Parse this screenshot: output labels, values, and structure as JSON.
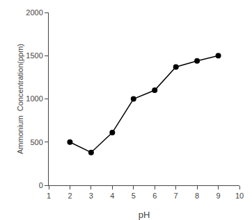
{
  "chart_data": {
    "type": "line",
    "x": [
      2,
      3,
      4,
      5,
      6,
      7,
      8,
      9
    ],
    "values": [
      500,
      380,
      610,
      1000,
      1100,
      1370,
      1440,
      1500
    ],
    "xlabel": "pH",
    "ylabel": "Ammonium  Concentration(ppm)",
    "xlim": [
      1,
      10
    ],
    "ylim": [
      0,
      2000
    ],
    "xticks": [
      1,
      2,
      3,
      4,
      5,
      6,
      7,
      8,
      9,
      10
    ],
    "yticks": [
      0,
      500,
      1000,
      1500,
      2000
    ],
    "color": "#000000",
    "marker": "circle",
    "line_style": "solid",
    "grid": false
  }
}
